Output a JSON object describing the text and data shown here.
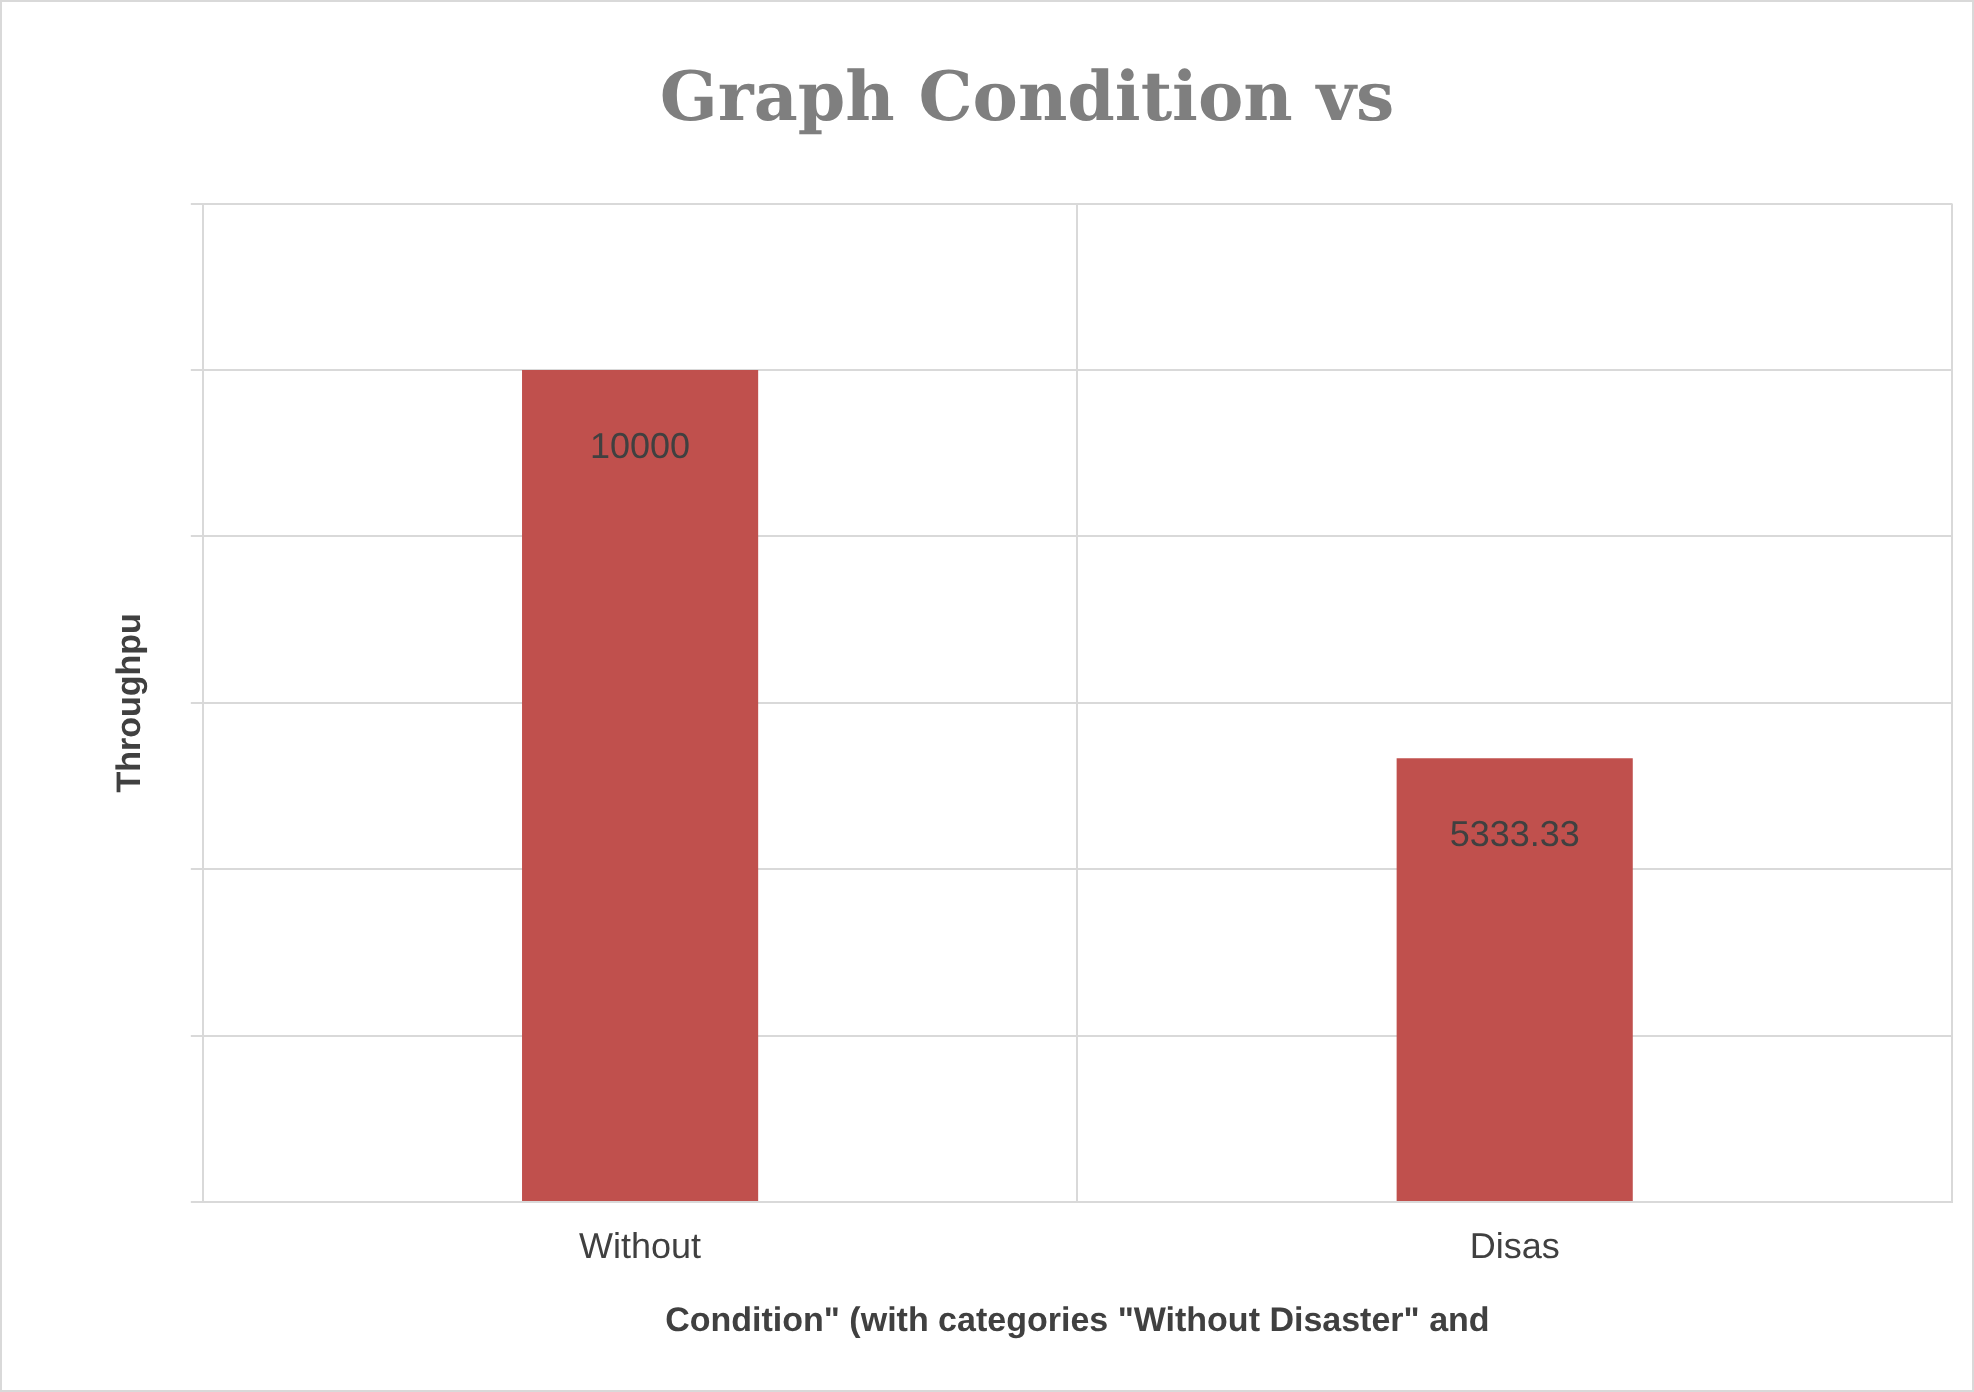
{
  "chart_data": {
    "type": "bar",
    "title": "Graph Condition vs",
    "xlabel": "Condition\" (with categories \"Without Disaster\" and",
    "ylabel": "Throughpu",
    "categories": [
      "Without",
      "Disas"
    ],
    "series": [
      {
        "color": "#c0504d",
        "values": [
          10000,
          5333.33
        ]
      }
    ],
    "ylim": [
      0,
      12000
    ],
    "yticks": [
      {
        "value": 0,
        "label": null
      },
      {
        "value": 2000,
        "label": null
      },
      {
        "value": 4000,
        "label": null
      },
      {
        "value": 6000,
        "label": null
      },
      {
        "value": 8000,
        "label": null
      },
      {
        "value": 10000,
        "label": null
      },
      {
        "value": 12000,
        "label": null
      }
    ],
    "tick_labels": "x",
    "grid": true,
    "data_labels": true,
    "legend": false
  }
}
